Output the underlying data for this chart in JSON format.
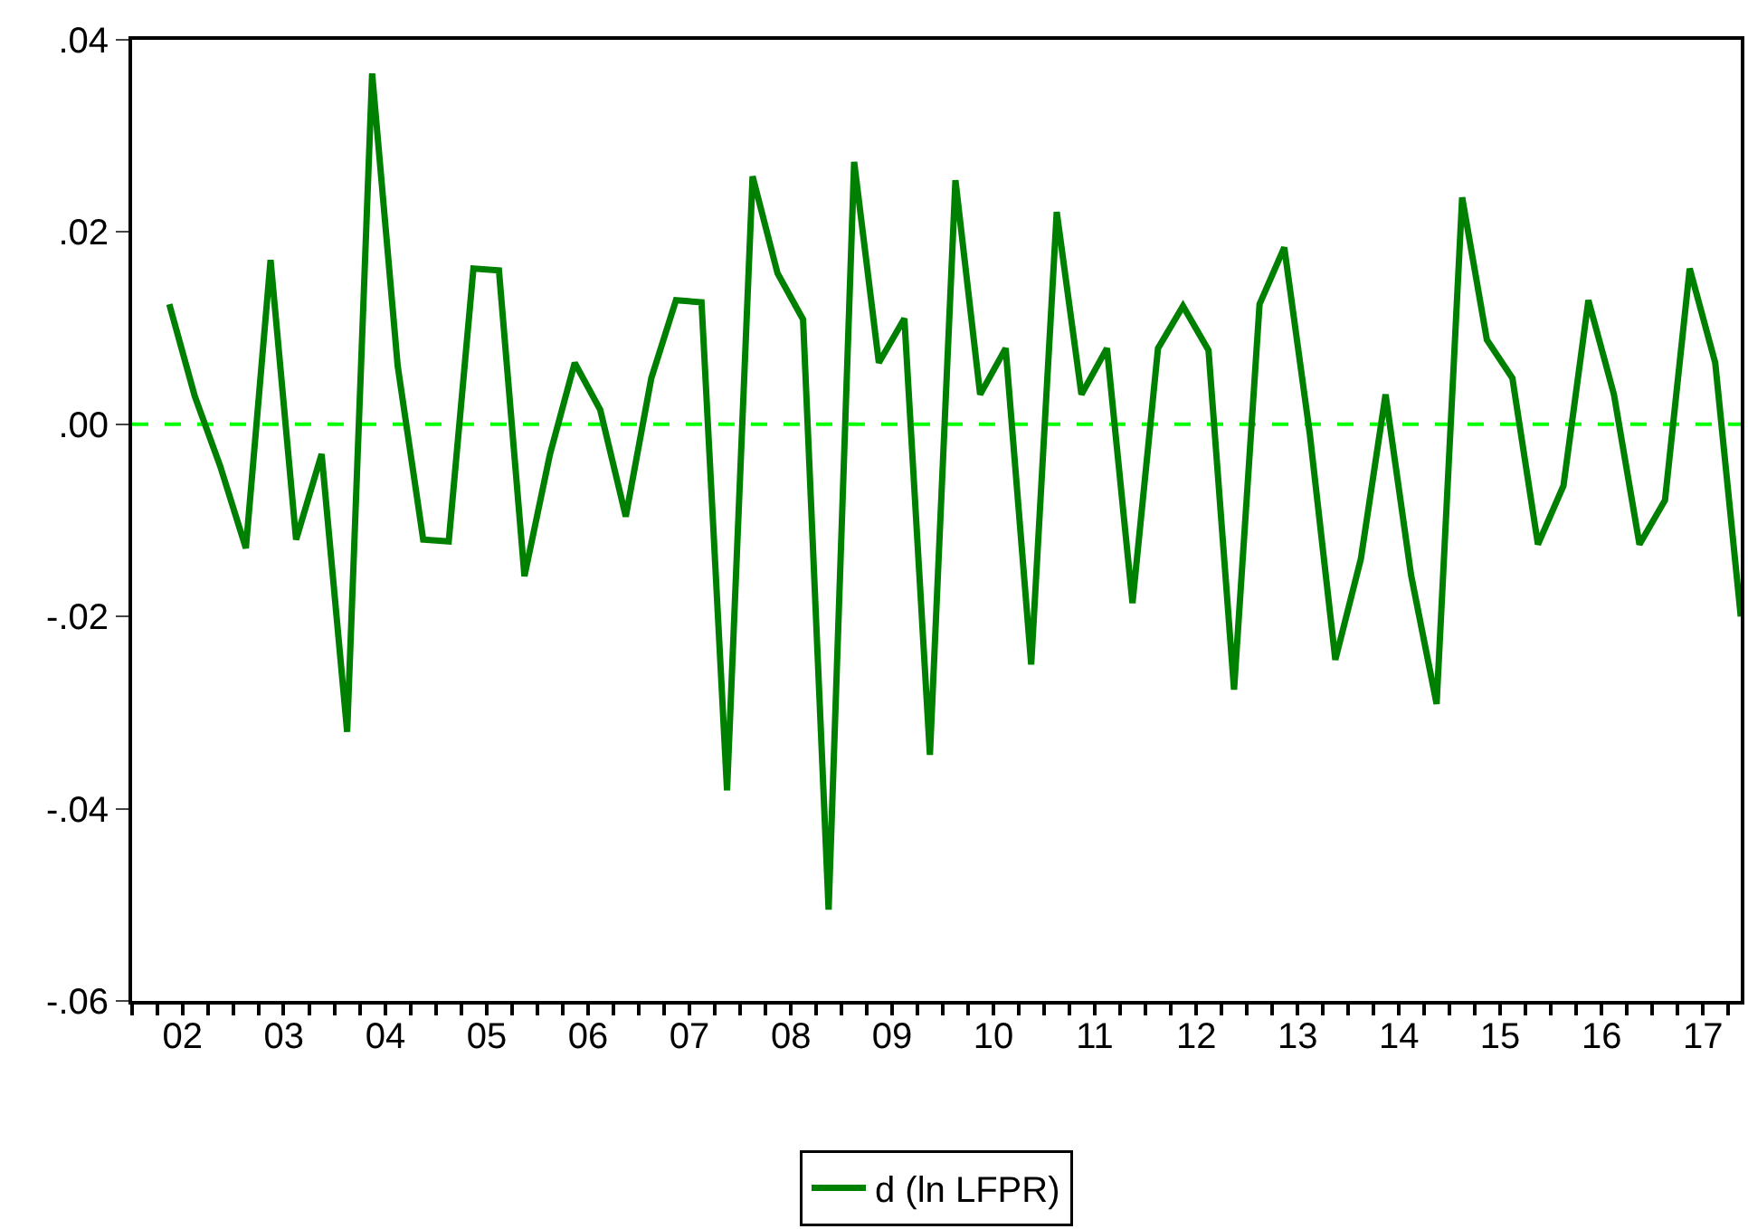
{
  "chart_data": {
    "type": "line",
    "x": [
      "2002-05-15",
      "2002-08-15",
      "2002-11-15",
      "2003-02-15",
      "2003-05-15",
      "2003-08-15",
      "2003-11-15",
      "2004-02-15",
      "2004-05-15",
      "2004-08-15",
      "2004-11-15",
      "2005-02-15",
      "2005-05-15",
      "2005-08-15",
      "2005-11-15",
      "2006-02-15",
      "2006-05-15",
      "2006-08-15",
      "2006-11-15",
      "2007-02-15",
      "2007-05-15",
      "2007-08-15",
      "2007-11-15",
      "2008-02-15",
      "2008-05-15",
      "2008-08-15",
      "2008-11-15",
      "2009-02-15",
      "2009-05-15",
      "2009-08-15",
      "2009-11-15",
      "2010-02-15",
      "2010-05-15",
      "2010-08-15",
      "2010-11-15",
      "2011-02-15",
      "2011-05-15",
      "2011-08-15",
      "2011-11-15",
      "2012-02-15",
      "2012-05-15",
      "2012-08-15",
      "2012-11-15",
      "2013-02-15",
      "2013-05-15",
      "2013-08-15",
      "2013-11-15",
      "2014-02-15",
      "2014-05-15",
      "2014-08-15",
      "2014-11-15",
      "2015-02-15",
      "2015-05-15",
      "2015-08-15",
      "2015-11-15",
      "2016-02-15",
      "2016-05-15",
      "2016-08-15",
      "2016-11-15",
      "2017-02-15",
      "2017-05-15",
      "2017-08-15",
      "2017-11-15"
    ],
    "series": [
      {
        "name": "d (ln LFPR)",
        "color": "#008000",
        "values": [
          0.0125,
          0.0029,
          -0.0044,
          -0.0129,
          0.0171,
          -0.012,
          -0.0031,
          -0.032,
          0.0365,
          0.0061,
          -0.012,
          -0.0122,
          0.0162,
          0.016,
          -0.0158,
          -0.0031,
          0.0064,
          0.0015,
          -0.0096,
          0.0048,
          0.0129,
          0.0127,
          -0.0381,
          0.0258,
          0.0157,
          0.0109,
          -0.0505,
          0.0273,
          0.0064,
          0.011,
          -0.0344,
          0.0254,
          0.0031,
          0.0079,
          -0.025,
          0.0221,
          0.0031,
          0.0079,
          -0.0186,
          0.0079,
          0.0123,
          0.0077,
          -0.0276,
          0.0125,
          0.0184,
          -0.001,
          -0.0245,
          -0.014,
          0.0031,
          -0.0157,
          -0.0291,
          0.0236,
          0.0088,
          0.0048,
          -0.0125,
          -0.0064,
          0.0129,
          0.0031,
          -0.0125,
          -0.0079,
          0.0162,
          0.0064,
          -0.02
        ]
      }
    ],
    "xlim": [
      "2002-01-01",
      "2017-11-15"
    ],
    "xticks": [
      {
        "value": "2002-01-01",
        "label": null
      },
      {
        "value": "2002-07-02",
        "label": "02"
      },
      {
        "value": "2003-01-01",
        "label": null
      },
      {
        "value": "2003-07-02",
        "label": "03"
      },
      {
        "value": "2004-01-01",
        "label": null
      },
      {
        "value": "2004-07-02",
        "label": "04"
      },
      {
        "value": "2005-01-01",
        "label": null
      },
      {
        "value": "2005-07-02",
        "label": "05"
      },
      {
        "value": "2006-01-01",
        "label": null
      },
      {
        "value": "2006-07-02",
        "label": "06"
      },
      {
        "value": "2007-01-01",
        "label": null
      },
      {
        "value": "2007-07-02",
        "label": "07"
      },
      {
        "value": "2008-01-01",
        "label": null
      },
      {
        "value": "2008-07-02",
        "label": "08"
      },
      {
        "value": "2009-01-01",
        "label": null
      },
      {
        "value": "2009-07-02",
        "label": "09"
      },
      {
        "value": "2010-01-01",
        "label": null
      },
      {
        "value": "2010-07-02",
        "label": "10"
      },
      {
        "value": "2011-01-01",
        "label": null
      },
      {
        "value": "2011-07-02",
        "label": "11"
      },
      {
        "value": "2012-01-01",
        "label": null
      },
      {
        "value": "2012-07-02",
        "label": "12"
      },
      {
        "value": "2013-01-01",
        "label": null
      },
      {
        "value": "2013-07-02",
        "label": "13"
      },
      {
        "value": "2014-01-01",
        "label": null
      },
      {
        "value": "2014-07-02",
        "label": "14"
      },
      {
        "value": "2015-01-01",
        "label": null
      },
      {
        "value": "2015-07-02",
        "label": "15"
      },
      {
        "value": "2016-01-01",
        "label": null
      },
      {
        "value": "2016-07-02",
        "label": "16"
      },
      {
        "value": "2017-01-01",
        "label": null
      },
      {
        "value": "2017-07-02",
        "label": "17"
      }
    ],
    "ylim": [
      -0.06,
      0.04
    ],
    "yticks": [
      {
        "value": -0.06,
        "label": "-.06"
      },
      {
        "value": -0.04,
        "label": "-.04"
      },
      {
        "value": -0.02,
        "label": "-.02"
      },
      {
        "value": 0,
        "label": ".00"
      },
      {
        "value": 0.02,
        "label": ".02"
      },
      {
        "value": 0.04,
        "label": ".04"
      }
    ],
    "ref_lines": [
      {
        "axis": "y",
        "value": 0,
        "color": "#00ff00",
        "line_style": "dashed"
      }
    ],
    "grid": false,
    "legend": "bottom",
    "marker": "none",
    "line_style": "solid"
  }
}
